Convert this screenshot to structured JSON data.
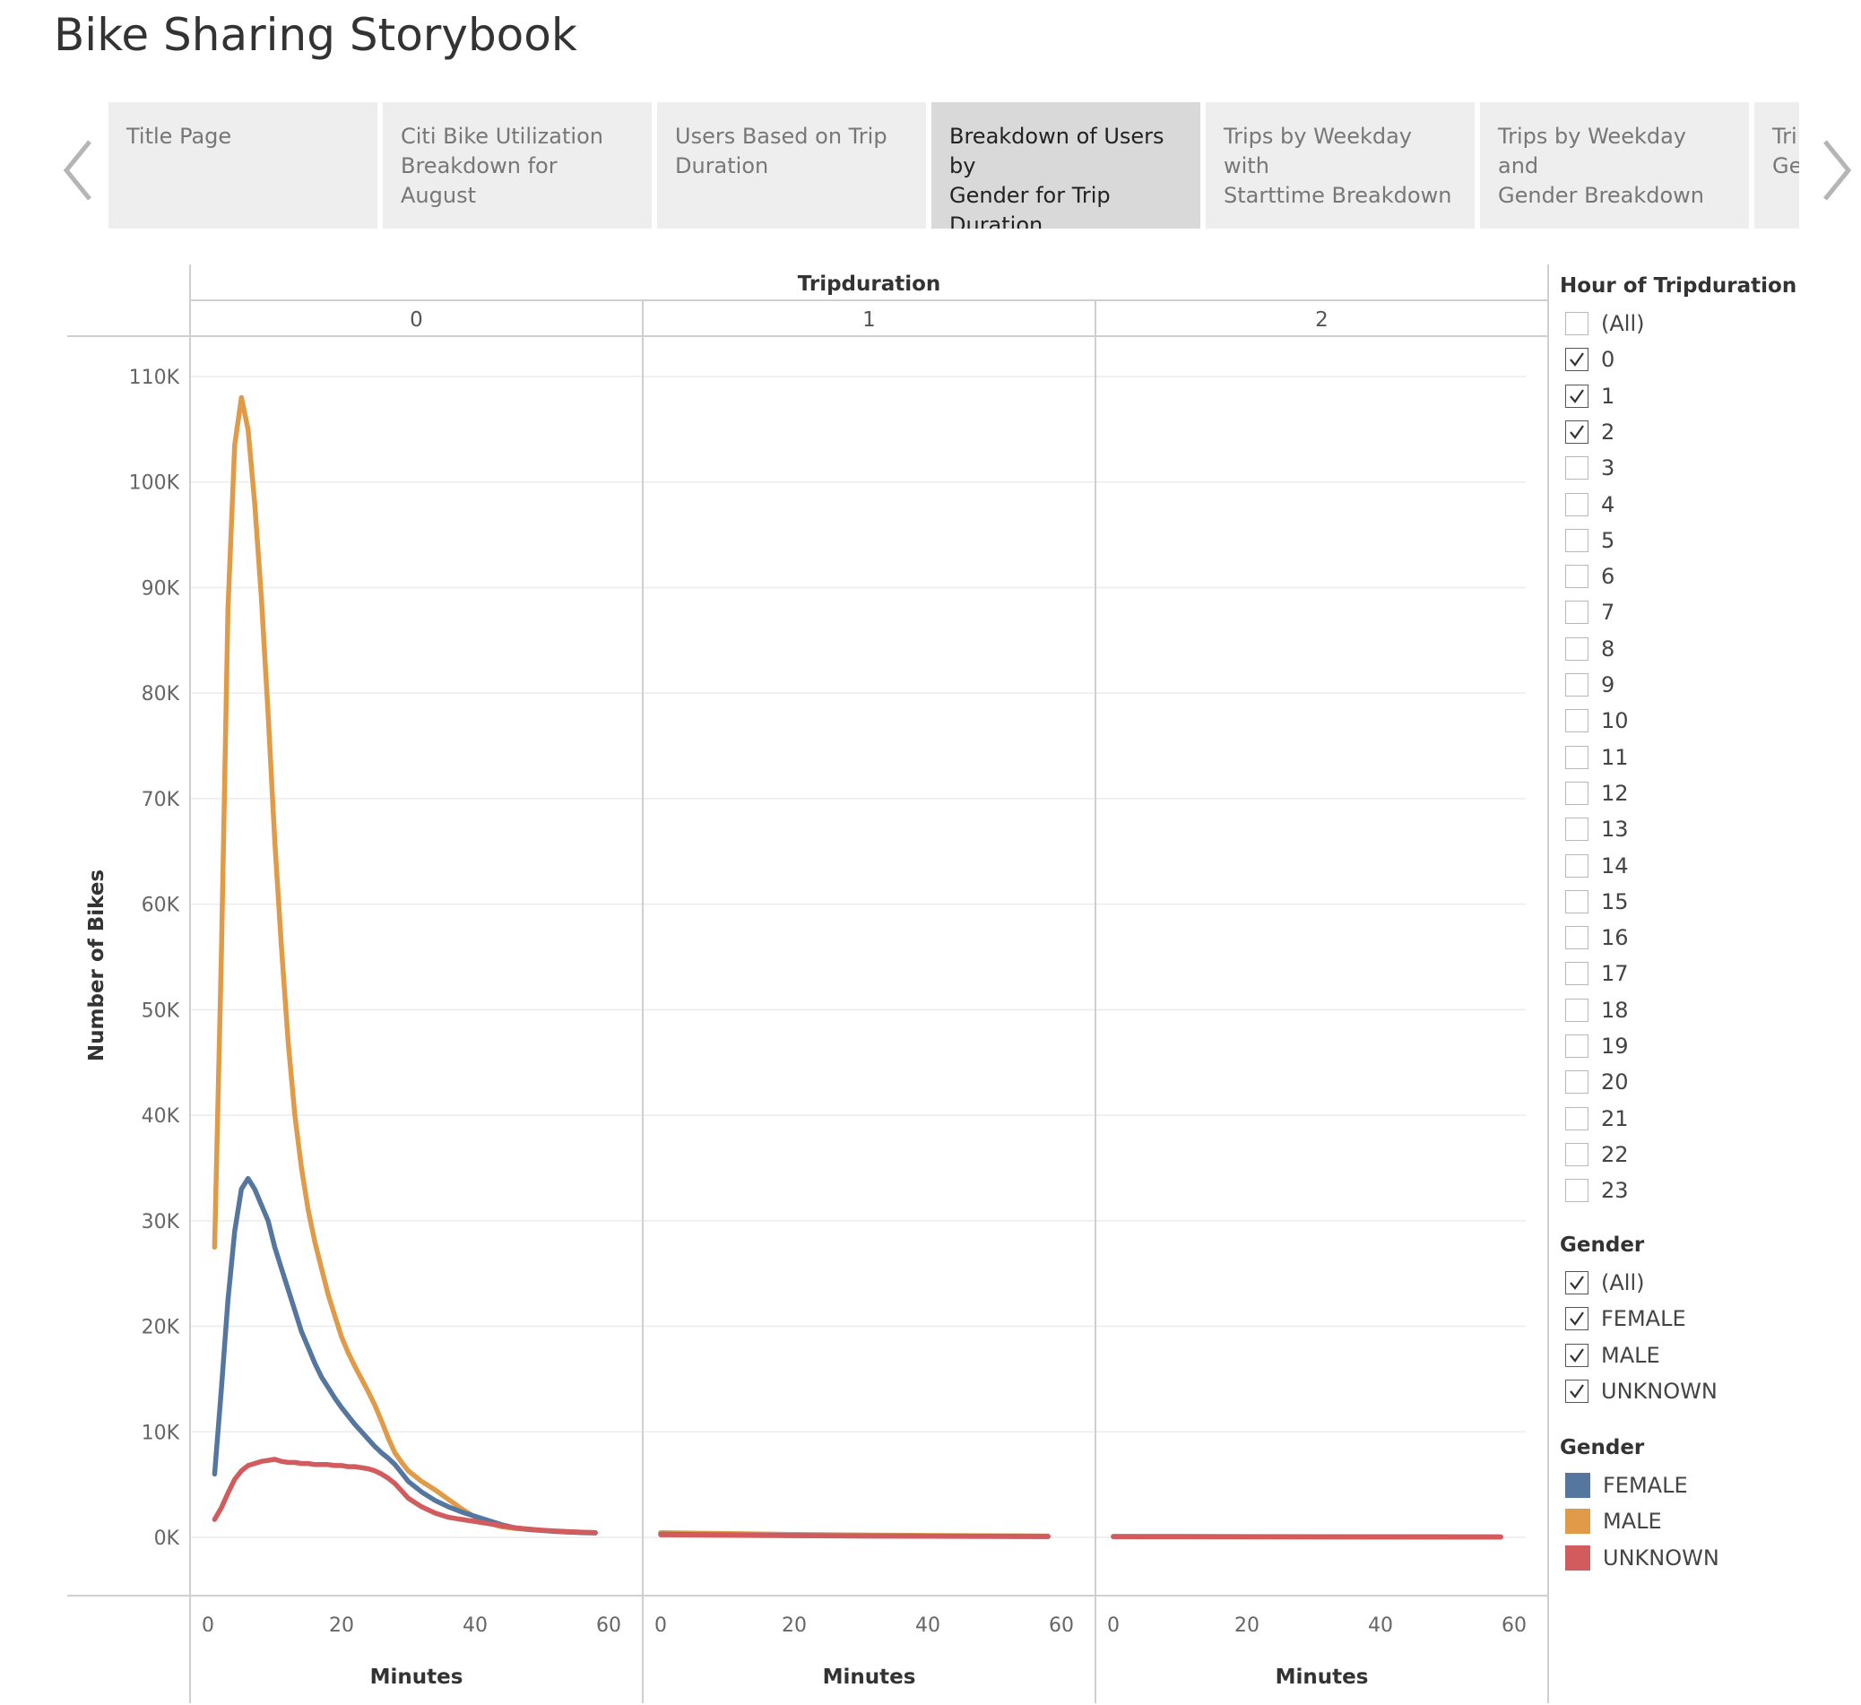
{
  "app": {
    "title": "Bike Sharing Storybook"
  },
  "nav": {
    "prev_icon": "chevron-left-icon",
    "next_icon": "chevron-right-icon"
  },
  "tabs": [
    {
      "lines": [
        "Title Page"
      ],
      "active": false
    },
    {
      "lines": [
        "Citi Bike Utilization",
        "Breakdown for August"
      ],
      "active": false
    },
    {
      "lines": [
        "Users Based on Trip",
        "Duration"
      ],
      "active": false
    },
    {
      "lines": [
        "Breakdown of Users by",
        "Gender for Trip",
        "Duration"
      ],
      "active": true
    },
    {
      "lines": [
        "Trips by Weekday with",
        "Starttime Breakdown"
      ],
      "active": false
    },
    {
      "lines": [
        "Trips by Weekday and",
        "Gender Breakdown"
      ],
      "active": false
    },
    {
      "lines": [
        "Tri",
        "Ge"
      ],
      "active": false
    }
  ],
  "filters": {
    "hour": {
      "title": "Hour of Tripduration",
      "options": [
        {
          "label": "(All)",
          "checked": false
        },
        {
          "label": "0",
          "checked": true
        },
        {
          "label": "1",
          "checked": true
        },
        {
          "label": "2",
          "checked": true
        },
        {
          "label": "3",
          "checked": false
        },
        {
          "label": "4",
          "checked": false
        },
        {
          "label": "5",
          "checked": false
        },
        {
          "label": "6",
          "checked": false
        },
        {
          "label": "7",
          "checked": false
        },
        {
          "label": "8",
          "checked": false
        },
        {
          "label": "9",
          "checked": false
        },
        {
          "label": "10",
          "checked": false
        },
        {
          "label": "11",
          "checked": false
        },
        {
          "label": "12",
          "checked": false
        },
        {
          "label": "13",
          "checked": false
        },
        {
          "label": "14",
          "checked": false
        },
        {
          "label": "15",
          "checked": false
        },
        {
          "label": "16",
          "checked": false
        },
        {
          "label": "17",
          "checked": false
        },
        {
          "label": "18",
          "checked": false
        },
        {
          "label": "19",
          "checked": false
        },
        {
          "label": "20",
          "checked": false
        },
        {
          "label": "21",
          "checked": false
        },
        {
          "label": "22",
          "checked": false
        },
        {
          "label": "23",
          "checked": false
        }
      ]
    },
    "gender": {
      "title": "Gender",
      "options": [
        {
          "label": "(All)",
          "checked": true
        },
        {
          "label": "FEMALE",
          "checked": true
        },
        {
          "label": "MALE",
          "checked": true
        },
        {
          "label": "UNKNOWN",
          "checked": true
        }
      ]
    }
  },
  "color_legend": {
    "title": "Gender",
    "items": [
      {
        "label": "FEMALE",
        "color": "#55779f"
      },
      {
        "label": "MALE",
        "color": "#e19a47"
      },
      {
        "label": "UNKNOWN",
        "color": "#d25b5d"
      }
    ]
  },
  "chart_data": {
    "type": "line",
    "title": "",
    "facet_title": "Tripduration",
    "facets": [
      "0",
      "1",
      "2"
    ],
    "xlabel": "Minutes",
    "ylabel": "Number of Bikes",
    "xlim": [
      0,
      60
    ],
    "xticks": [
      0,
      20,
      40,
      60
    ],
    "ylim": [
      0,
      110000
    ],
    "yticks": [
      0,
      10000,
      20000,
      30000,
      40000,
      50000,
      60000,
      70000,
      80000,
      90000,
      100000,
      110000
    ],
    "ytick_labels": [
      "0K",
      "10K",
      "20K",
      "30K",
      "40K",
      "50K",
      "60K",
      "70K",
      "80K",
      "90K",
      "100K",
      "110K"
    ],
    "grid": true,
    "series": [
      {
        "name": "MALE",
        "color": "#e19a47",
        "panels": [
          {
            "x": [
              1,
              2,
              3,
              4,
              5,
              6,
              7,
              8,
              9,
              10,
              11,
              12,
              13,
              14,
              15,
              16,
              17,
              18,
              19,
              20,
              21,
              22,
              23,
              24,
              25,
              26,
              27,
              28,
              29,
              30,
              32,
              34,
              36,
              38,
              40,
              42,
              44,
              46,
              48,
              50,
              52,
              54,
              56,
              58
            ],
            "y": [
              27500,
              55000,
              88000,
              103500,
              108000,
              105000,
              98000,
              89000,
              78000,
              66000,
              56000,
              47000,
              40000,
              35000,
              31000,
              28000,
              25500,
              23000,
              21000,
              19000,
              17500,
              16200,
              15000,
              13800,
              12500,
              11000,
              9400,
              8000,
              7100,
              6300,
              5300,
              4500,
              3600,
              2700,
              1900,
              1350,
              1000,
              850,
              750,
              650,
              580,
              520,
              480,
              450
            ]
          },
          {
            "x": [
              0,
              10,
              20,
              30,
              40,
              50,
              58
            ],
            "y": [
              450,
              360,
              280,
              220,
              180,
              150,
              130
            ]
          },
          {
            "x": [
              0,
              10,
              20,
              30,
              40,
              50,
              58
            ],
            "y": [
              100,
              90,
              80,
              70,
              60,
              55,
              50
            ]
          }
        ]
      },
      {
        "name": "FEMALE",
        "color": "#55779f",
        "panels": [
          {
            "x": [
              1,
              2,
              3,
              4,
              5,
              6,
              7,
              8,
              9,
              10,
              11,
              12,
              13,
              14,
              15,
              16,
              17,
              18,
              19,
              20,
              21,
              22,
              23,
              24,
              25,
              26,
              27,
              28,
              29,
              30,
              32,
              34,
              36,
              38,
              40,
              42,
              44,
              46,
              48,
              50,
              52,
              54,
              56,
              58
            ],
            "y": [
              6000,
              14000,
              22500,
              29000,
              33000,
              34000,
              33000,
              31500,
              30000,
              27500,
              25500,
              23500,
              21500,
              19500,
              18000,
              16500,
              15200,
              14200,
              13200,
              12300,
              11500,
              10700,
              10000,
              9300,
              8600,
              8000,
              7500,
              6900,
              6100,
              5300,
              4300,
              3500,
              2900,
              2400,
              2000,
              1600,
              1200,
              900,
              750,
              650,
              560,
              500,
              450,
              420
            ]
          },
          {
            "x": [
              0,
              10,
              20,
              30,
              40,
              50,
              58
            ],
            "y": [
              300,
              230,
              180,
              140,
              110,
              90,
              80
            ]
          },
          {
            "x": [
              0,
              10,
              20,
              30,
              40,
              50,
              58
            ],
            "y": [
              70,
              60,
              55,
              50,
              45,
              40,
              35
            ]
          }
        ]
      },
      {
        "name": "UNKNOWN",
        "color": "#d25b5d",
        "panels": [
          {
            "x": [
              1,
              2,
              3,
              4,
              5,
              6,
              7,
              8,
              9,
              10,
              11,
              12,
              13,
              14,
              15,
              16,
              17,
              18,
              19,
              20,
              21,
              22,
              23,
              24,
              25,
              26,
              27,
              28,
              29,
              30,
              32,
              34,
              36,
              38,
              40,
              42,
              44,
              46,
              48,
              50,
              52,
              54,
              56,
              58
            ],
            "y": [
              1700,
              2800,
              4200,
              5500,
              6300,
              6800,
              7000,
              7200,
              7300,
              7400,
              7200,
              7100,
              7100,
              7000,
              7000,
              6900,
              6900,
              6900,
              6800,
              6800,
              6700,
              6700,
              6600,
              6500,
              6300,
              6000,
              5600,
              5100,
              4400,
              3700,
              2900,
              2300,
              1900,
              1700,
              1500,
              1300,
              1100,
              900,
              780,
              680,
              600,
              540,
              480,
              440
            ]
          },
          {
            "x": [
              0,
              10,
              20,
              30,
              40,
              50,
              58
            ],
            "y": [
              250,
              200,
              160,
              130,
              110,
              95,
              85
            ]
          },
          {
            "x": [
              0,
              10,
              20,
              30,
              40,
              50,
              58
            ],
            "y": [
              60,
              55,
              50,
              45,
              40,
              35,
              30
            ]
          }
        ]
      }
    ]
  }
}
